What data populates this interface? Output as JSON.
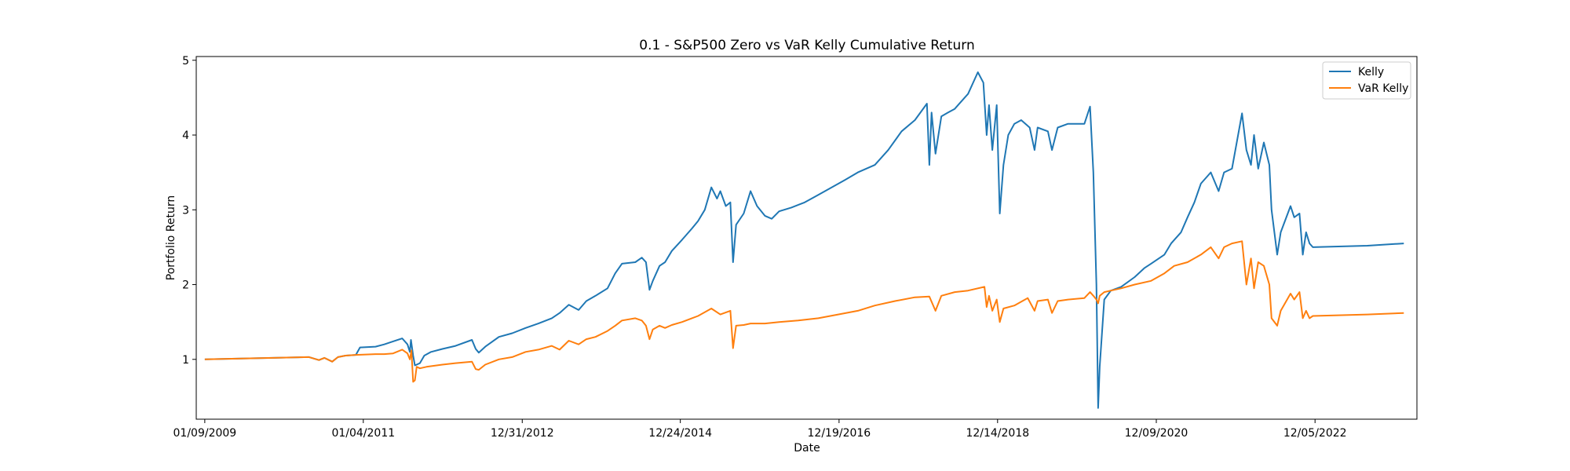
{
  "chart_data": {
    "type": "line",
    "title": "0.1 - S&P500 Zero vs VaR Kelly Cumulative Return",
    "xlabel": "Date",
    "ylabel": "Portfolio Return",
    "x_axis_type": "date",
    "xlim": [
      "2008-12-01",
      "2024-03-15"
    ],
    "ylim": [
      0.2,
      5.05
    ],
    "x_ticks": [
      {
        "date": "2009-01-09",
        "label": "01/09/2009"
      },
      {
        "date": "2011-01-04",
        "label": "01/04/2011"
      },
      {
        "date": "2012-12-31",
        "label": "12/31/2012"
      },
      {
        "date": "2014-12-24",
        "label": "12/24/2014"
      },
      {
        "date": "2016-12-19",
        "label": "12/19/2016"
      },
      {
        "date": "2018-12-14",
        "label": "12/14/2018"
      },
      {
        "date": "2020-12-09",
        "label": "12/09/2020"
      },
      {
        "date": "2022-12-05",
        "label": "12/05/2022"
      }
    ],
    "y_ticks": [
      {
        "value": 1,
        "label": "1"
      },
      {
        "value": 2,
        "label": "2"
      },
      {
        "value": 3,
        "label": "3"
      },
      {
        "value": 4,
        "label": "4"
      },
      {
        "value": 5,
        "label": "5"
      }
    ],
    "grid": false,
    "legend_position": "top-right",
    "colors": {
      "Kelly": "#1f77b4",
      "VaR Kelly": "#ff7f0e"
    },
    "series": [
      {
        "name": "Kelly",
        "color": "#1f77b4",
        "points": [
          [
            "2009-01-09",
            1.0
          ],
          [
            "2010-05-01",
            1.03
          ],
          [
            "2010-06-15",
            0.99
          ],
          [
            "2010-07-10",
            1.02
          ],
          [
            "2010-08-15",
            0.97
          ],
          [
            "2010-09-10",
            1.03
          ],
          [
            "2010-10-15",
            1.05
          ],
          [
            "2010-12-01",
            1.06
          ],
          [
            "2010-12-20",
            1.16
          ],
          [
            "2011-03-01",
            1.17
          ],
          [
            "2011-04-10",
            1.2
          ],
          [
            "2011-05-20",
            1.24
          ],
          [
            "2011-07-01",
            1.28
          ],
          [
            "2011-07-25",
            1.2
          ],
          [
            "2011-08-05",
            1.1
          ],
          [
            "2011-08-10",
            1.26
          ],
          [
            "2011-08-20",
            1.05
          ],
          [
            "2011-08-28",
            0.92
          ],
          [
            "2011-09-05",
            0.93
          ],
          [
            "2011-09-20",
            0.95
          ],
          [
            "2011-10-10",
            1.05
          ],
          [
            "2011-11-10",
            1.1
          ],
          [
            "2012-01-01",
            1.14
          ],
          [
            "2012-03-01",
            1.18
          ],
          [
            "2012-05-15",
            1.26
          ],
          [
            "2012-06-01",
            1.14
          ],
          [
            "2012-06-15",
            1.09
          ],
          [
            "2012-07-15",
            1.17
          ],
          [
            "2012-09-15",
            1.3
          ],
          [
            "2012-11-15",
            1.35
          ],
          [
            "2013-01-15",
            1.42
          ],
          [
            "2013-03-15",
            1.48
          ],
          [
            "2013-05-15",
            1.55
          ],
          [
            "2013-06-20",
            1.62
          ],
          [
            "2013-08-01",
            1.73
          ],
          [
            "2013-09-15",
            1.66
          ],
          [
            "2013-10-20",
            1.78
          ],
          [
            "2013-12-01",
            1.85
          ],
          [
            "2014-01-25",
            1.95
          ],
          [
            "2014-03-01",
            2.15
          ],
          [
            "2014-04-01",
            2.28
          ],
          [
            "2014-06-01",
            2.3
          ],
          [
            "2014-07-01",
            2.36
          ],
          [
            "2014-07-20",
            2.3
          ],
          [
            "2014-08-05",
            1.93
          ],
          [
            "2014-08-20",
            2.05
          ],
          [
            "2014-09-20",
            2.25
          ],
          [
            "2014-10-15",
            2.3
          ],
          [
            "2014-11-15",
            2.45
          ],
          [
            "2015-01-01",
            2.6
          ],
          [
            "2015-02-15",
            2.75
          ],
          [
            "2015-03-15",
            2.85
          ],
          [
            "2015-04-15",
            3.0
          ],
          [
            "2015-05-15",
            3.3
          ],
          [
            "2015-06-10",
            3.15
          ],
          [
            "2015-06-25",
            3.25
          ],
          [
            "2015-07-20",
            3.05
          ],
          [
            "2015-08-10",
            3.1
          ],
          [
            "2015-08-22",
            2.3
          ],
          [
            "2015-09-05",
            2.8
          ],
          [
            "2015-10-10",
            2.95
          ],
          [
            "2015-11-10",
            3.25
          ],
          [
            "2015-12-10",
            3.05
          ],
          [
            "2016-01-15",
            2.92
          ],
          [
            "2016-02-15",
            2.88
          ],
          [
            "2016-03-20",
            2.98
          ],
          [
            "2016-05-15",
            3.03
          ],
          [
            "2016-07-15",
            3.1
          ],
          [
            "2016-09-15",
            3.2
          ],
          [
            "2016-11-15",
            3.3
          ],
          [
            "2017-01-15",
            3.4
          ],
          [
            "2017-03-15",
            3.5
          ],
          [
            "2017-06-01",
            3.6
          ],
          [
            "2017-08-01",
            3.8
          ],
          [
            "2017-10-01",
            4.05
          ],
          [
            "2017-12-01",
            4.2
          ],
          [
            "2018-01-25",
            4.42
          ],
          [
            "2018-02-05",
            3.6
          ],
          [
            "2018-02-15",
            4.3
          ],
          [
            "2018-03-05",
            3.75
          ],
          [
            "2018-04-01",
            4.25
          ],
          [
            "2018-05-01",
            4.3
          ],
          [
            "2018-06-01",
            4.35
          ],
          [
            "2018-07-01",
            4.45
          ],
          [
            "2018-08-01",
            4.55
          ],
          [
            "2018-09-15",
            4.84
          ],
          [
            "2018-10-10",
            4.7
          ],
          [
            "2018-10-25",
            4.0
          ],
          [
            "2018-11-05",
            4.4
          ],
          [
            "2018-11-20",
            3.8
          ],
          [
            "2018-12-10",
            4.4
          ],
          [
            "2018-12-24",
            2.95
          ],
          [
            "2019-01-10",
            3.6
          ],
          [
            "2019-02-01",
            4.0
          ],
          [
            "2019-03-01",
            4.15
          ],
          [
            "2019-04-01",
            4.2
          ],
          [
            "2019-05-10",
            4.1
          ],
          [
            "2019-06-01",
            3.8
          ],
          [
            "2019-06-15",
            4.1
          ],
          [
            "2019-08-01",
            4.05
          ],
          [
            "2019-08-20",
            3.8
          ],
          [
            "2019-09-15",
            4.1
          ],
          [
            "2019-11-01",
            4.15
          ],
          [
            "2020-01-15",
            4.15
          ],
          [
            "2020-02-10",
            4.38
          ],
          [
            "2020-02-25",
            3.5
          ],
          [
            "2020-03-10",
            2.0
          ],
          [
            "2020-03-18",
            0.35
          ],
          [
            "2020-03-25",
            0.9
          ],
          [
            "2020-04-15",
            1.8
          ],
          [
            "2020-05-15",
            1.92
          ],
          [
            "2020-07-01",
            1.97
          ],
          [
            "2020-09-01",
            2.1
          ],
          [
            "2020-10-15",
            2.22
          ],
          [
            "2020-11-15",
            2.28
          ],
          [
            "2021-01-15",
            2.4
          ],
          [
            "2021-02-15",
            2.55
          ],
          [
            "2021-04-01",
            2.7
          ],
          [
            "2021-05-01",
            2.9
          ],
          [
            "2021-06-01",
            3.1
          ],
          [
            "2021-07-01",
            3.35
          ],
          [
            "2021-08-15",
            3.5
          ],
          [
            "2021-09-20",
            3.25
          ],
          [
            "2021-10-15",
            3.5
          ],
          [
            "2021-11-20",
            3.55
          ],
          [
            "2022-01-05",
            4.29
          ],
          [
            "2022-01-25",
            3.8
          ],
          [
            "2022-02-15",
            3.6
          ],
          [
            "2022-03-01",
            4.0
          ],
          [
            "2022-03-20",
            3.55
          ],
          [
            "2022-04-15",
            3.9
          ],
          [
            "2022-05-10",
            3.6
          ],
          [
            "2022-05-20",
            3.0
          ],
          [
            "2022-06-15",
            2.4
          ],
          [
            "2022-07-01",
            2.7
          ],
          [
            "2022-08-15",
            3.05
          ],
          [
            "2022-09-01",
            2.9
          ],
          [
            "2022-09-25",
            2.95
          ],
          [
            "2022-10-10",
            2.4
          ],
          [
            "2022-10-25",
            2.7
          ],
          [
            "2022-11-10",
            2.55
          ],
          [
            "2022-11-25",
            2.5
          ],
          [
            "2023-08-01",
            2.52
          ],
          [
            "2024-01-15",
            2.55
          ]
        ]
      },
      {
        "name": "VaR Kelly",
        "color": "#ff7f0e",
        "points": [
          [
            "2009-01-09",
            1.0
          ],
          [
            "2010-05-01",
            1.03
          ],
          [
            "2010-06-15",
            0.99
          ],
          [
            "2010-07-10",
            1.02
          ],
          [
            "2010-08-15",
            0.97
          ],
          [
            "2010-09-10",
            1.03
          ],
          [
            "2010-10-15",
            1.05
          ],
          [
            "2010-12-01",
            1.06
          ],
          [
            "2011-03-01",
            1.07
          ],
          [
            "2011-04-10",
            1.07
          ],
          [
            "2011-05-20",
            1.08
          ],
          [
            "2011-07-01",
            1.13
          ],
          [
            "2011-07-25",
            1.08
          ],
          [
            "2011-08-05",
            1.0
          ],
          [
            "2011-08-12",
            1.12
          ],
          [
            "2011-08-20",
            0.7
          ],
          [
            "2011-08-28",
            0.72
          ],
          [
            "2011-09-05",
            0.9
          ],
          [
            "2011-09-20",
            0.88
          ],
          [
            "2011-10-20",
            0.9
          ],
          [
            "2012-01-01",
            0.93
          ],
          [
            "2012-03-01",
            0.95
          ],
          [
            "2012-05-15",
            0.97
          ],
          [
            "2012-06-01",
            0.87
          ],
          [
            "2012-06-15",
            0.86
          ],
          [
            "2012-07-15",
            0.93
          ],
          [
            "2012-09-15",
            1.0
          ],
          [
            "2012-11-15",
            1.03
          ],
          [
            "2013-01-15",
            1.1
          ],
          [
            "2013-03-15",
            1.13
          ],
          [
            "2013-05-15",
            1.18
          ],
          [
            "2013-06-20",
            1.13
          ],
          [
            "2013-08-01",
            1.25
          ],
          [
            "2013-09-15",
            1.2
          ],
          [
            "2013-10-20",
            1.27
          ],
          [
            "2013-12-01",
            1.3
          ],
          [
            "2014-01-25",
            1.38
          ],
          [
            "2014-03-01",
            1.45
          ],
          [
            "2014-04-01",
            1.52
          ],
          [
            "2014-06-01",
            1.55
          ],
          [
            "2014-07-01",
            1.52
          ],
          [
            "2014-07-20",
            1.45
          ],
          [
            "2014-08-05",
            1.27
          ],
          [
            "2014-08-20",
            1.4
          ],
          [
            "2014-09-20",
            1.45
          ],
          [
            "2014-10-15",
            1.42
          ],
          [
            "2014-11-15",
            1.46
          ],
          [
            "2015-01-01",
            1.5
          ],
          [
            "2015-02-15",
            1.55
          ],
          [
            "2015-03-15",
            1.58
          ],
          [
            "2015-05-15",
            1.68
          ],
          [
            "2015-06-25",
            1.6
          ],
          [
            "2015-08-10",
            1.65
          ],
          [
            "2015-08-22",
            1.15
          ],
          [
            "2015-09-05",
            1.45
          ],
          [
            "2015-10-10",
            1.46
          ],
          [
            "2015-11-10",
            1.48
          ],
          [
            "2016-01-15",
            1.48
          ],
          [
            "2016-03-20",
            1.5
          ],
          [
            "2016-06-15",
            1.52
          ],
          [
            "2016-09-15",
            1.55
          ],
          [
            "2016-12-15",
            1.6
          ],
          [
            "2017-03-15",
            1.65
          ],
          [
            "2017-06-01",
            1.72
          ],
          [
            "2017-09-01",
            1.78
          ],
          [
            "2017-12-01",
            1.83
          ],
          [
            "2018-02-05",
            1.84
          ],
          [
            "2018-03-05",
            1.65
          ],
          [
            "2018-04-01",
            1.85
          ],
          [
            "2018-06-01",
            1.9
          ],
          [
            "2018-08-01",
            1.92
          ],
          [
            "2018-10-15",
            1.97
          ],
          [
            "2018-10-25",
            1.7
          ],
          [
            "2018-11-05",
            1.85
          ],
          [
            "2018-11-20",
            1.65
          ],
          [
            "2018-12-10",
            1.8
          ],
          [
            "2018-12-24",
            1.5
          ],
          [
            "2019-01-10",
            1.68
          ],
          [
            "2019-03-01",
            1.72
          ],
          [
            "2019-05-01",
            1.82
          ],
          [
            "2019-06-01",
            1.65
          ],
          [
            "2019-06-15",
            1.78
          ],
          [
            "2019-08-01",
            1.8
          ],
          [
            "2019-08-20",
            1.62
          ],
          [
            "2019-09-15",
            1.78
          ],
          [
            "2019-11-01",
            1.8
          ],
          [
            "2020-01-15",
            1.82
          ],
          [
            "2020-02-10",
            1.9
          ],
          [
            "2020-02-25",
            1.85
          ],
          [
            "2020-03-10",
            1.8
          ],
          [
            "2020-03-18",
            1.75
          ],
          [
            "2020-03-25",
            1.85
          ],
          [
            "2020-04-15",
            1.9
          ],
          [
            "2020-05-15",
            1.92
          ],
          [
            "2020-07-01",
            1.95
          ],
          [
            "2020-09-01",
            2.0
          ],
          [
            "2020-11-15",
            2.05
          ],
          [
            "2021-01-15",
            2.15
          ],
          [
            "2021-03-01",
            2.25
          ],
          [
            "2021-05-01",
            2.3
          ],
          [
            "2021-07-01",
            2.4
          ],
          [
            "2021-08-15",
            2.5
          ],
          [
            "2021-09-20",
            2.35
          ],
          [
            "2021-10-15",
            2.5
          ],
          [
            "2021-11-20",
            2.55
          ],
          [
            "2022-01-05",
            2.58
          ],
          [
            "2022-01-25",
            2.0
          ],
          [
            "2022-02-15",
            2.35
          ],
          [
            "2022-03-01",
            1.95
          ],
          [
            "2022-03-20",
            2.3
          ],
          [
            "2022-04-15",
            2.25
          ],
          [
            "2022-05-10",
            2.0
          ],
          [
            "2022-05-20",
            1.55
          ],
          [
            "2022-06-15",
            1.45
          ],
          [
            "2022-07-01",
            1.65
          ],
          [
            "2022-08-15",
            1.88
          ],
          [
            "2022-09-01",
            1.8
          ],
          [
            "2022-09-25",
            1.9
          ],
          [
            "2022-10-10",
            1.55
          ],
          [
            "2022-10-25",
            1.65
          ],
          [
            "2022-11-10",
            1.55
          ],
          [
            "2022-11-25",
            1.58
          ],
          [
            "2023-08-01",
            1.6
          ],
          [
            "2024-01-15",
            1.62
          ]
        ]
      }
    ]
  }
}
